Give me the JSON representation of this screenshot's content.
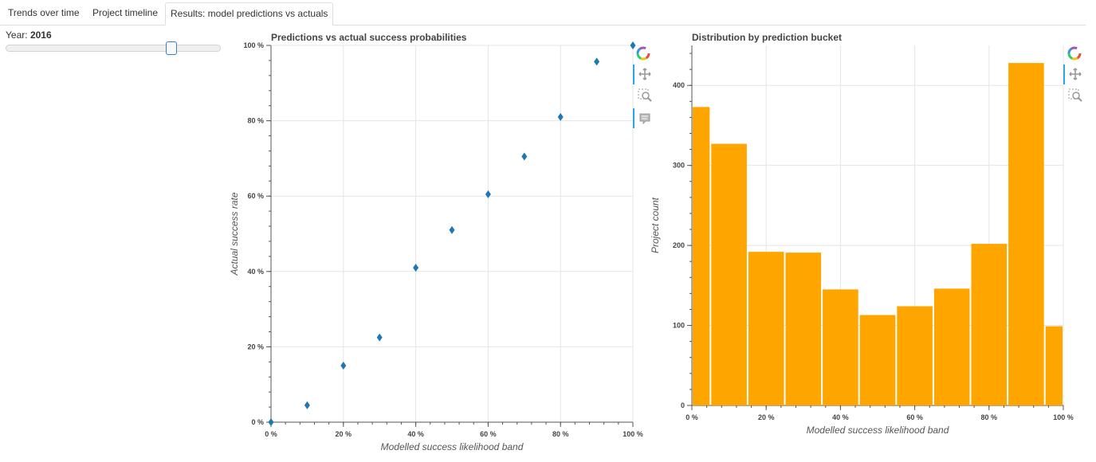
{
  "tabs": [
    {
      "label": "Trends over time"
    },
    {
      "label": "Project timeline"
    },
    {
      "label": "Results: model predictions vs actuals"
    }
  ],
  "slider": {
    "label": "Year:",
    "value": "2016",
    "position_fraction": 0.78
  },
  "colors": {
    "scatter": "#1f77b4",
    "bar": "#ffa500",
    "tool_active": "#26aae1"
  },
  "chart_data": [
    {
      "type": "scatter",
      "title": "Predictions vs actual success probabilities",
      "xlabel": "Modelled success likelihood band",
      "ylabel": "Actual success rate",
      "xlim": [
        0,
        1
      ],
      "ylim": [
        0,
        1
      ],
      "x_ticks": [
        "0 %",
        "20 %",
        "40 %",
        "60 %",
        "80 %",
        "100 %"
      ],
      "y_ticks": [
        "0 %",
        "20 %",
        "40 %",
        "60 %",
        "80 %",
        "100 %"
      ],
      "marker": "diamond",
      "grid": true,
      "x": [
        0.0,
        0.1,
        0.2,
        0.3,
        0.4,
        0.5,
        0.6,
        0.7,
        0.8,
        0.9,
        1.0
      ],
      "y": [
        0.0,
        0.045,
        0.15,
        0.225,
        0.41,
        0.51,
        0.605,
        0.705,
        0.81,
        0.957,
        1.0
      ]
    },
    {
      "type": "bar",
      "title": "Distribution by prediction bucket",
      "xlabel": "Modelled success likelihood band",
      "ylabel": "Project count",
      "xlim": [
        0,
        1
      ],
      "ylim": [
        0,
        450
      ],
      "x_ticks": [
        "0 %",
        "20 %",
        "40 %",
        "60 %",
        "80 %",
        "100 %"
      ],
      "y_ticks": [
        "0",
        "100",
        "200",
        "300",
        "400"
      ],
      "grid": true,
      "bins": [
        {
          "from": 0.0,
          "to": 0.05,
          "value": 373
        },
        {
          "from": 0.05,
          "to": 0.15,
          "value": 327
        },
        {
          "from": 0.15,
          "to": 0.25,
          "value": 192
        },
        {
          "from": 0.25,
          "to": 0.35,
          "value": 191
        },
        {
          "from": 0.35,
          "to": 0.45,
          "value": 145
        },
        {
          "from": 0.45,
          "to": 0.55,
          "value": 113
        },
        {
          "from": 0.55,
          "to": 0.65,
          "value": 124
        },
        {
          "from": 0.65,
          "to": 0.75,
          "value": 146
        },
        {
          "from": 0.75,
          "to": 0.85,
          "value": 202
        },
        {
          "from": 0.85,
          "to": 0.95,
          "value": 428
        },
        {
          "from": 0.95,
          "to": 1.0,
          "value": 99
        }
      ]
    }
  ],
  "toolbars": [
    {
      "tools": [
        "bokeh-logo-icon",
        "pan-icon",
        "box-zoom-icon",
        "hover-icon"
      ]
    },
    {
      "tools": [
        "bokeh-logo-icon",
        "pan-icon",
        "box-zoom-icon"
      ]
    }
  ]
}
